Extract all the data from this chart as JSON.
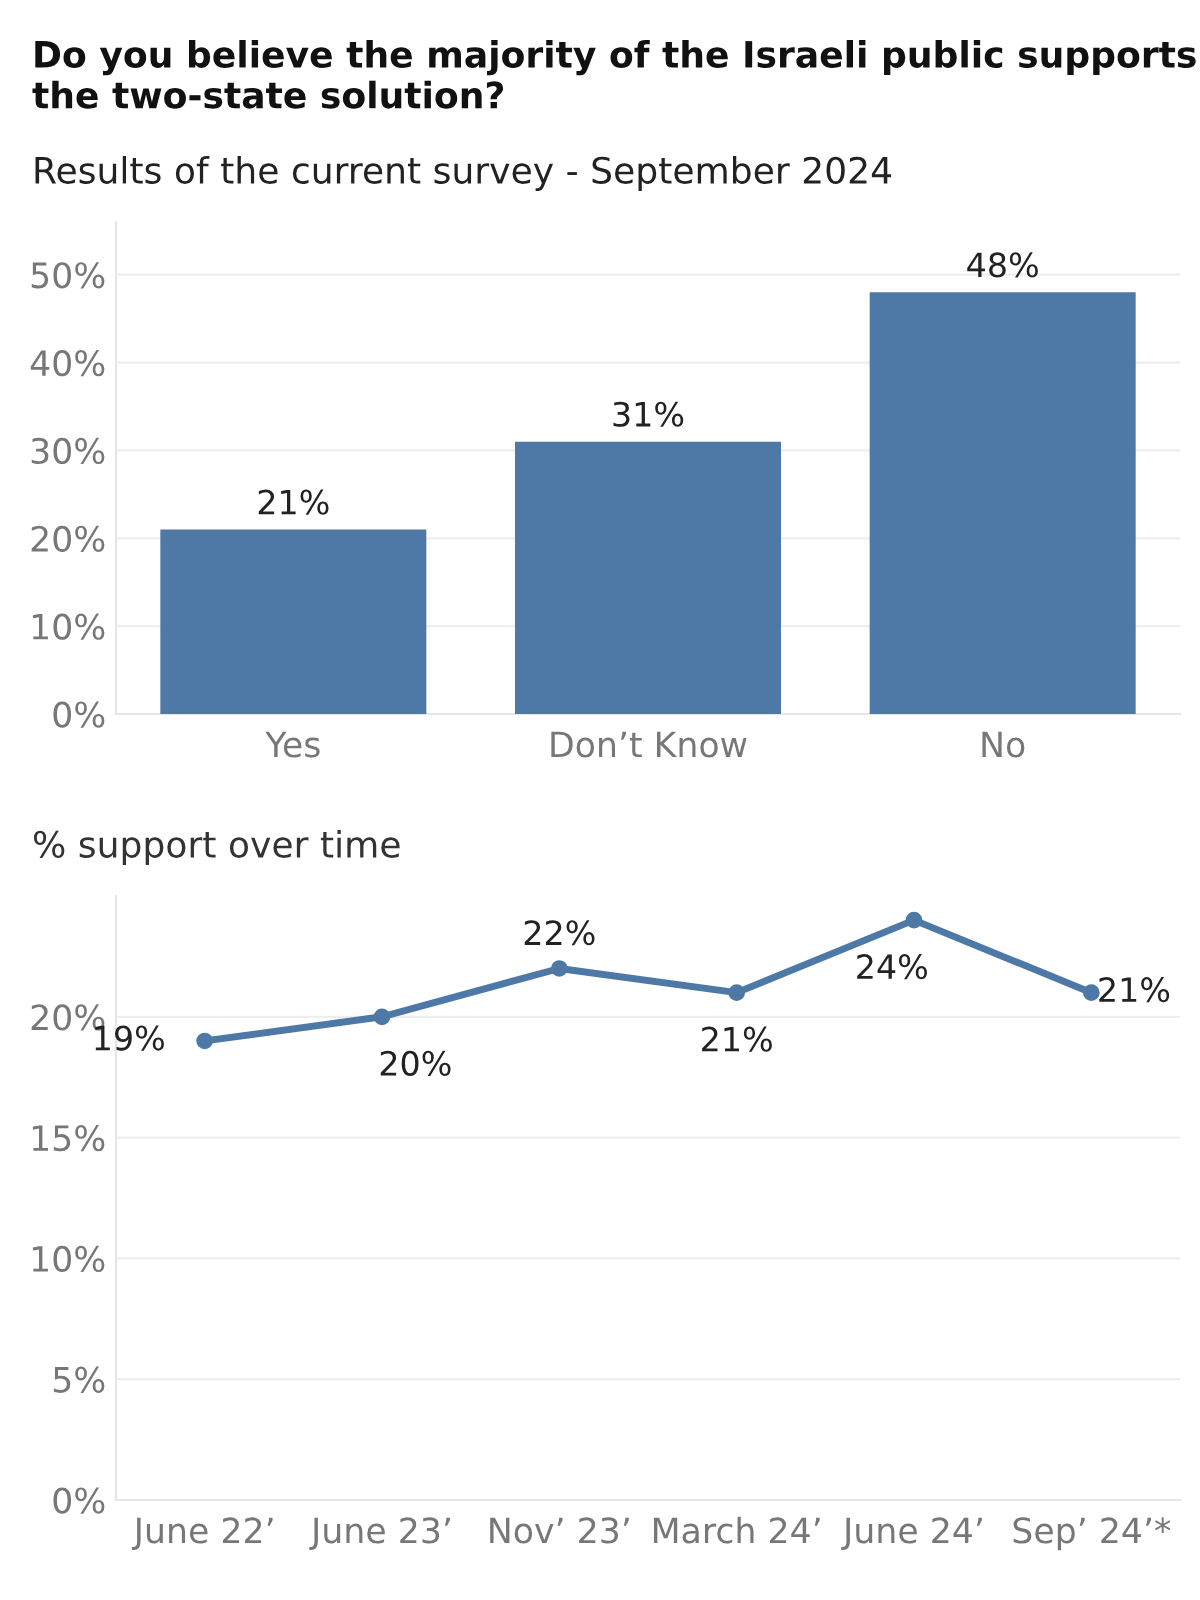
{
  "chart_data": [
    {
      "type": "bar",
      "title": "Do you believe the majority of the Israeli public supports the two-state solution?",
      "subtitle": "Results of the current survey - September 2024",
      "categories": [
        "Yes",
        "Don’t Know",
        "No"
      ],
      "values": [
        21,
        31,
        48
      ],
      "color": "#4e79a7",
      "value_labels": [
        "21%",
        "31%",
        "48%"
      ],
      "ylim": [
        0,
        56
      ],
      "yticks": [
        {
          "value": 0,
          "label": "0%"
        },
        {
          "value": 10,
          "label": "10%"
        },
        {
          "value": 20,
          "label": "20%"
        },
        {
          "value": 30,
          "label": "30%"
        },
        {
          "value": 40,
          "label": "40%"
        },
        {
          "value": 50,
          "label": "50%"
        }
      ],
      "grid": "y"
    },
    {
      "type": "line",
      "title": "% support over time",
      "categories": [
        "June 22’",
        "June 23’",
        "Nov’ 23’",
        "March 24’",
        "June 24’",
        "Sep’ 24’*"
      ],
      "values": [
        19,
        20,
        22,
        21,
        24,
        21
      ],
      "color": "#4e79a7",
      "value_labels": [
        "19%",
        "20%",
        "22%",
        "21%",
        "24%",
        "21%"
      ],
      "marker": "circle",
      "ylim": [
        0,
        25
      ],
      "yticks": [
        {
          "value": 0,
          "label": "0%"
        },
        {
          "value": 5,
          "label": "5%"
        },
        {
          "value": 10,
          "label": "10%"
        },
        {
          "value": 15,
          "label": "15%"
        },
        {
          "value": 20,
          "label": "20%"
        }
      ],
      "grid": "y"
    }
  ]
}
